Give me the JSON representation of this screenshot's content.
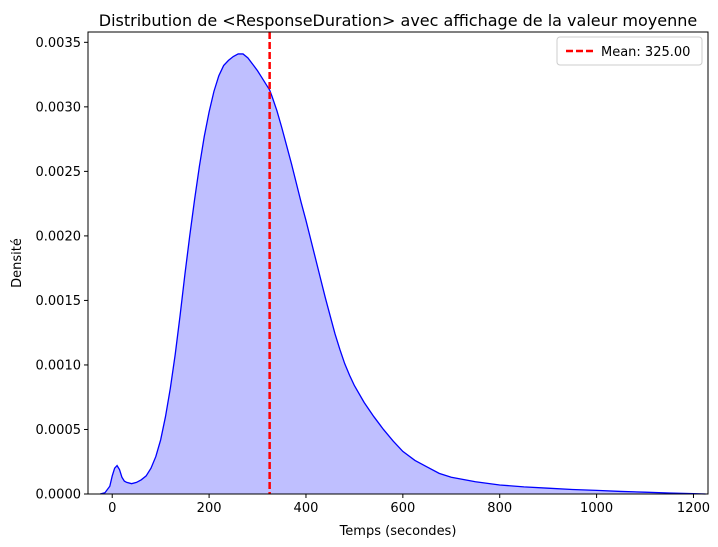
{
  "chart_data": {
    "type": "area",
    "title": "Distribution de <ResponseDuration> avec affichage de la valeur moyenne",
    "xlabel": "Temps (secondes)",
    "ylabel": "Densité",
    "xlim": [
      -50,
      1230
    ],
    "ylim": [
      0,
      0.00358
    ],
    "xticks": [
      0,
      200,
      400,
      600,
      800,
      1000,
      1200
    ],
    "xtick_labels": [
      "0",
      "200",
      "400",
      "600",
      "800",
      "1000",
      "1200"
    ],
    "yticks": [
      0,
      0.0005,
      0.001,
      0.0015,
      0.002,
      0.0025,
      0.003,
      0.0035
    ],
    "ytick_labels": [
      "0.0000",
      "0.0005",
      "0.0010",
      "0.0015",
      "0.0020",
      "0.0025",
      "0.0030",
      "0.0035"
    ],
    "grid": false,
    "legend_position": "top-right",
    "series": [
      {
        "kind": "density",
        "color": "#0000ff",
        "fill": "#bfbfff",
        "x": [
          -25,
          -15,
          -5,
          0,
          5,
          10,
          15,
          20,
          25,
          30,
          40,
          50,
          60,
          70,
          80,
          90,
          100,
          110,
          120,
          130,
          140,
          150,
          160,
          170,
          180,
          190,
          200,
          210,
          220,
          230,
          240,
          250,
          260,
          270,
          280,
          290,
          300,
          310,
          320,
          325,
          330,
          340,
          350,
          360,
          370,
          380,
          390,
          400,
          410,
          420,
          430,
          440,
          450,
          460,
          470,
          480,
          490,
          500,
          520,
          540,
          560,
          580,
          600,
          625,
          650,
          675,
          700,
          750,
          800,
          850,
          900,
          950,
          1000,
          1050,
          1100,
          1150,
          1200,
          1225
        ],
        "y": [
          0.0,
          1e-05,
          6e-05,
          0.00014,
          0.0002,
          0.00022,
          0.00019,
          0.00013,
          0.0001,
          9e-05,
          8e-05,
          9e-05,
          0.00011,
          0.00014,
          0.0002,
          0.00029,
          0.00042,
          0.0006,
          0.00082,
          0.00108,
          0.00138,
          0.0017,
          0.002,
          0.00228,
          0.00254,
          0.00277,
          0.00296,
          0.00312,
          0.00324,
          0.00332,
          0.00336,
          0.00339,
          0.00341,
          0.00341,
          0.00338,
          0.00333,
          0.00328,
          0.00322,
          0.00316,
          0.00313,
          0.00308,
          0.00297,
          0.00284,
          0.0027,
          0.00256,
          0.00241,
          0.00226,
          0.00212,
          0.00197,
          0.00182,
          0.00167,
          0.00152,
          0.00138,
          0.00124,
          0.00112,
          0.00101,
          0.00092,
          0.00084,
          0.00071,
          0.0006,
          0.0005,
          0.00041,
          0.00033,
          0.00026,
          0.00021,
          0.00016,
          0.00013,
          9.5e-05,
          7e-05,
          5.5e-05,
          4.5e-05,
          3.5e-05,
          2.8e-05,
          2e-05,
          1.4e-05,
          8e-06,
          3e-06,
          0.0
        ]
      },
      {
        "kind": "vline",
        "name": "Mean: 325.00",
        "x": 325,
        "color": "#ff0000",
        "style": "dashed"
      }
    ],
    "legend": [
      {
        "label": "Mean: 325.00",
        "color": "#ff0000",
        "style": "dashed"
      }
    ]
  }
}
